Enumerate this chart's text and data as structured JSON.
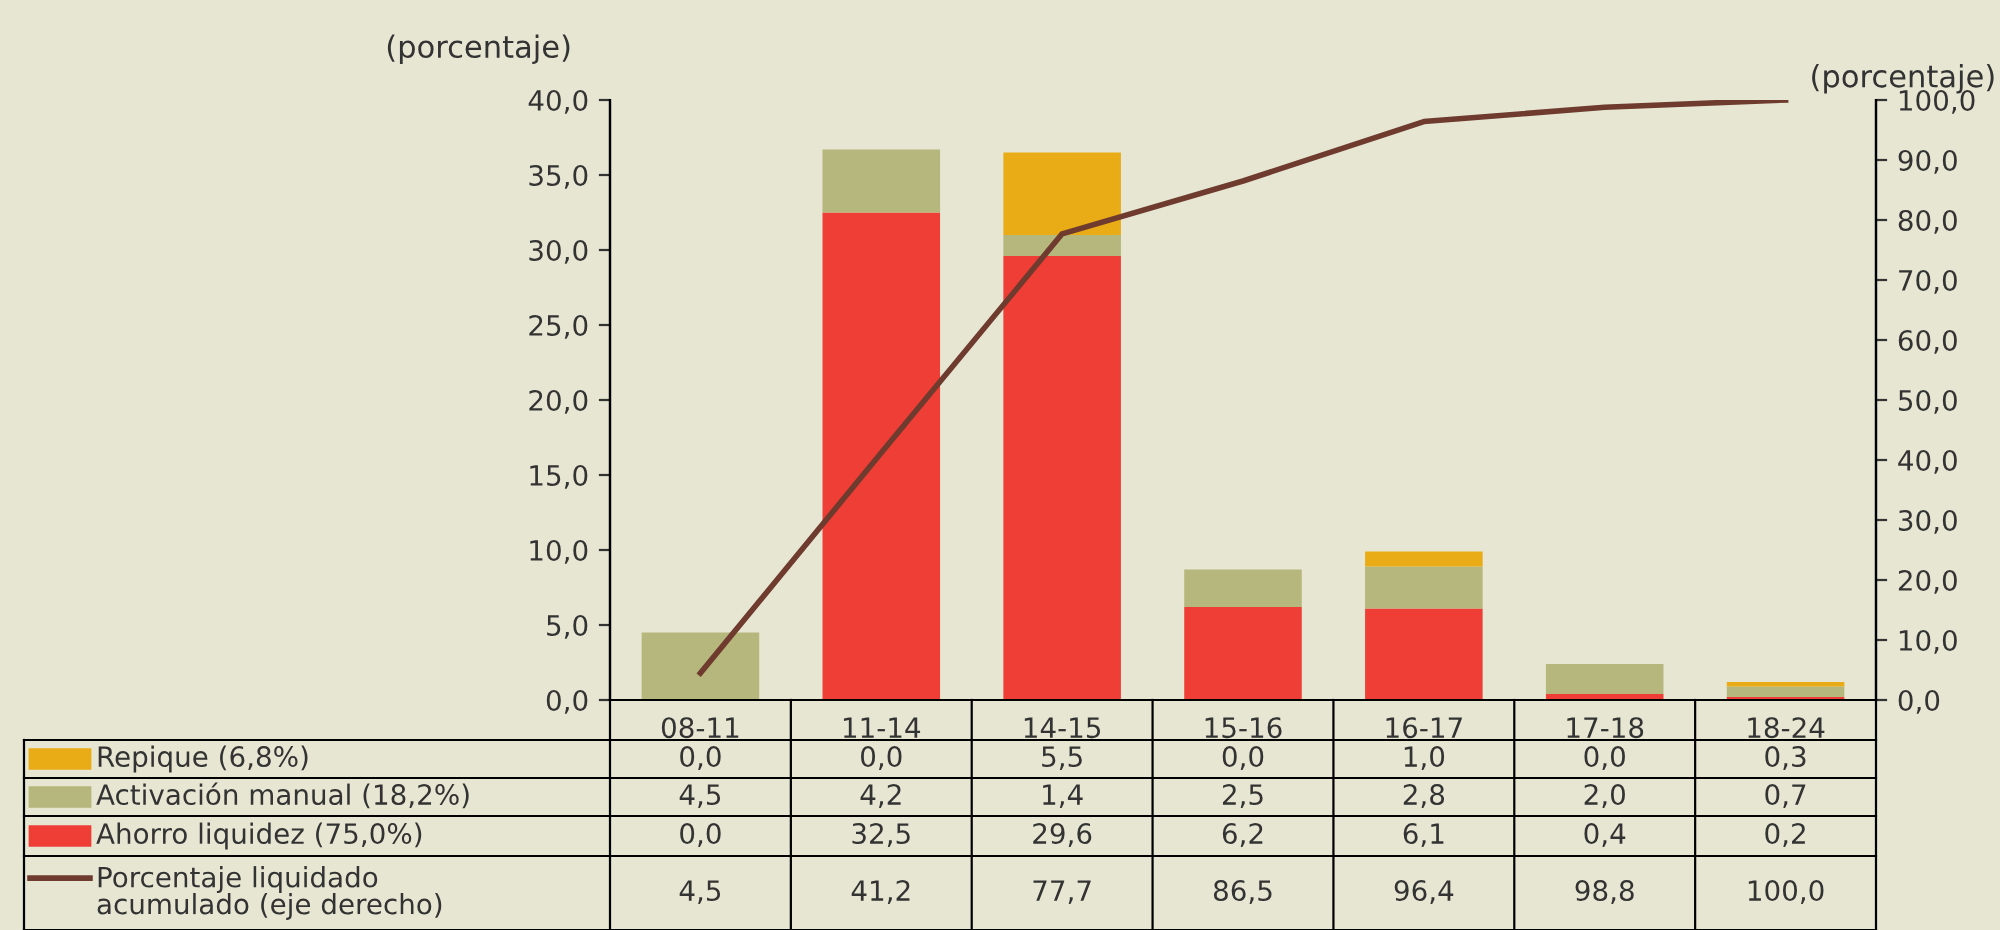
{
  "chart_data": {
    "type": "bar",
    "stacked": true,
    "ylabel": "(porcentaje)",
    "y2label": "(porcentaje)",
    "categories": [
      "08-11",
      "11-14",
      "14-15",
      "15-16",
      "16-17",
      "17-18",
      "18-24"
    ],
    "series": [
      {
        "name": "Ahorro liquidez (75,0%)",
        "color": "#ee3e36",
        "values": [
          0.0,
          32.5,
          29.6,
          6.2,
          6.1,
          0.4,
          0.2
        ],
        "value_labels": [
          "0,0",
          "32,5",
          "29,6",
          "6,2",
          "6,1",
          "0,4",
          "0,2"
        ]
      },
      {
        "name": "Activación manual (18,2%)",
        "color": "#b6b77c",
        "values": [
          4.5,
          4.2,
          1.4,
          2.5,
          2.8,
          2.0,
          0.7
        ],
        "value_labels": [
          "4,5",
          "4,2",
          "1,4",
          "2,5",
          "2,8",
          "2,0",
          "0,7"
        ]
      },
      {
        "name": "Repique (6,8%)",
        "color": "#e9ac16",
        "values": [
          0.0,
          0.0,
          5.5,
          0.0,
          1.0,
          0.0,
          0.3
        ],
        "value_labels": [
          "0,0",
          "0,0",
          "5,5",
          "0,0",
          "1,0",
          "0,0",
          "0,3"
        ]
      },
      {
        "name": "Porcentaje liquidado\nacumulado (eje derecho)",
        "type": "line",
        "axis": "y2",
        "color": "#6e3b2e",
        "values": [
          4.5,
          41.2,
          77.7,
          86.5,
          96.4,
          98.8,
          100.0
        ],
        "value_labels": [
          "4,5",
          "41,2",
          "77,7",
          "86,5",
          "96,4",
          "98,8",
          "100,0"
        ]
      }
    ],
    "ylim": [
      0,
      40
    ],
    "yticks": [
      {
        "value": 0,
        "label": "0,0"
      },
      {
        "value": 5,
        "label": "5,0"
      },
      {
        "value": 10,
        "label": "10,0"
      },
      {
        "value": 15,
        "label": "15,0"
      },
      {
        "value": 20,
        "label": "20,0"
      },
      {
        "value": 25,
        "label": "25,0"
      },
      {
        "value": 30,
        "label": "30,0"
      },
      {
        "value": 35,
        "label": "35,0"
      },
      {
        "value": 40,
        "label": "40,0"
      }
    ],
    "y2lim": [
      0,
      100
    ],
    "y2ticks": [
      {
        "value": 0,
        "label": "0,0"
      },
      {
        "value": 10,
        "label": "10,0"
      },
      {
        "value": 20,
        "label": "20,0"
      },
      {
        "value": 30,
        "label": "30,0"
      },
      {
        "value": 40,
        "label": "40,0"
      },
      {
        "value": 50,
        "label": "50,0"
      },
      {
        "value": 60,
        "label": "60,0"
      },
      {
        "value": 70,
        "label": "70,0"
      },
      {
        "value": 80,
        "label": "80,0"
      },
      {
        "value": 90,
        "label": "90,0"
      },
      {
        "value": 100,
        "label": "100,0"
      }
    ],
    "grid": false,
    "legend": "bottom",
    "marker": "none",
    "line_style": "solid"
  }
}
